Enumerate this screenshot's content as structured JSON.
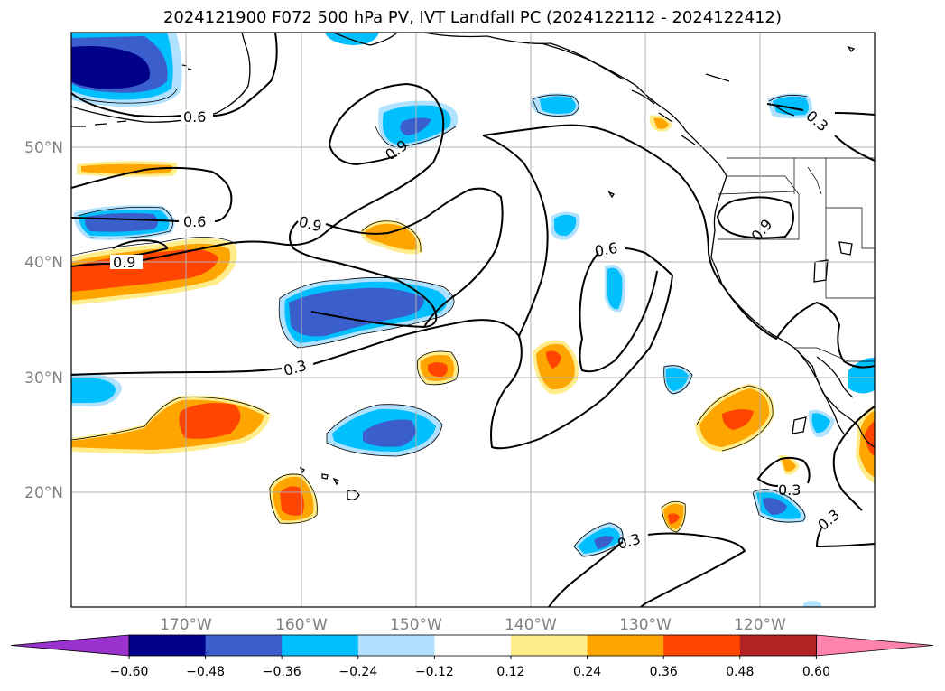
{
  "title": "2024121900 F072 500 hPa PV, IVT Landfall PC (2024122112 - 2024122412)",
  "map": {
    "lon_labels": [
      "170°W",
      "160°W",
      "150°W",
      "140°W",
      "130°W",
      "120°W"
    ],
    "lat_labels": [
      "50°N",
      "40°N",
      "30°N",
      "20°N"
    ],
    "contour_labels": [
      "0.6",
      "0.6",
      "0.9",
      "0.9",
      "0.9",
      "0.6",
      "0.3",
      "0.3",
      "0.3",
      "0.3",
      "0.9",
      "0.3"
    ]
  },
  "colorbar": {
    "ticks": [
      "−0.60",
      "−0.48",
      "−0.36",
      "−0.24",
      "−0.12",
      "0.12",
      "0.24",
      "0.36",
      "0.48",
      "0.60"
    ],
    "colors": [
      "#9a32cd",
      "#00008b",
      "#3a5fcd",
      "#00bfff",
      "#b0e2ff",
      "#ffffff",
      "#ffec8b",
      "#ffa500",
      "#ff4500",
      "#b22222",
      "#ff82ab"
    ]
  }
}
